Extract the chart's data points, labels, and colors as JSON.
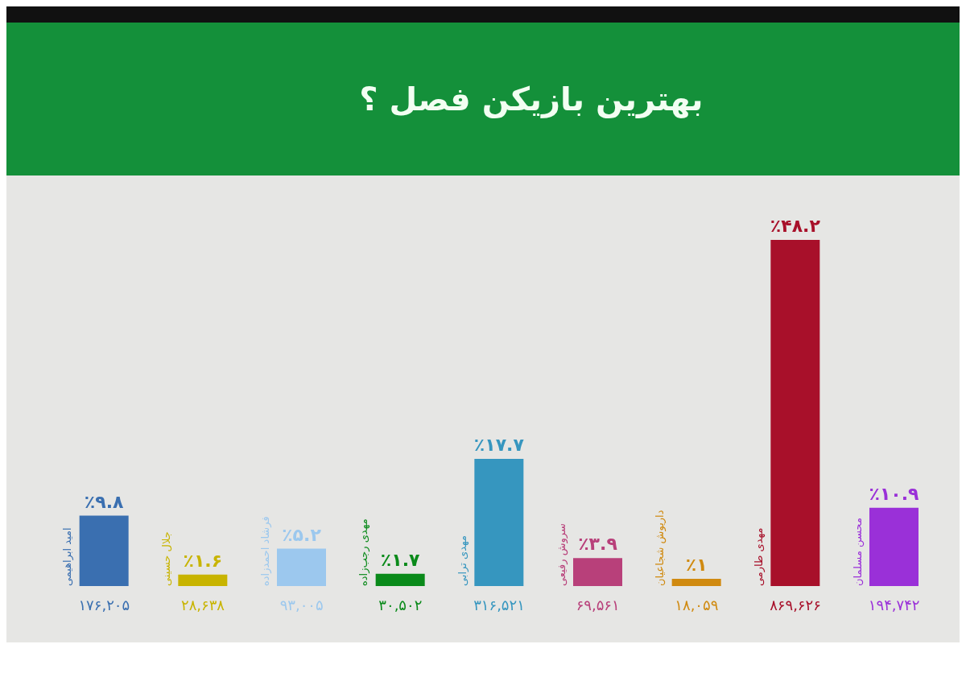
{
  "chart_data": {
    "type": "bar",
    "title": "بهترین بازیکن فصل ؟",
    "categories": [
      "امید ابراهیمی",
      "جلال حسینی",
      "فرشاد احمدزاده",
      "مهدی رجب‌زاده",
      "مهدی ترابی",
      "سروش رفیعی",
      "داریوش شجاعیان",
      "مهدی طارمی",
      "محسن مسلمان"
    ],
    "values": [
      9.8,
      1.6,
      5.2,
      1.7,
      17.7,
      3.9,
      1,
      48.2,
      10.9
    ],
    "colors": [
      "#3a6fb0",
      "#c8b400",
      "#9cc8ee",
      "#0a8a1a",
      "#3696bf",
      "#b8407a",
      "#d08a10",
      "#a8102a",
      "#9a30d8"
    ],
    "value_labels": [
      "٪۹.۸",
      "٪۱.۶",
      "٪۵.۲",
      "٪۱.۷",
      "٪۱۷.۷",
      "٪۳.۹",
      "٪۱",
      "٪۴۸.۲",
      "٪۱۰.۹"
    ],
    "annotations": [
      "۱۷۶,۲۰۵",
      "۲۸,۶۳۸",
      "۹۳,۰۰۵",
      "۳۰,۵۰۲",
      "۳۱۶,۵۲۱",
      "۶۹,۵۶۱",
      "۱۸,۰۵۹",
      "۸۶۹,۶۲۶",
      "۱۹۴,۷۴۲"
    ],
    "grid": false,
    "legend": false
  }
}
